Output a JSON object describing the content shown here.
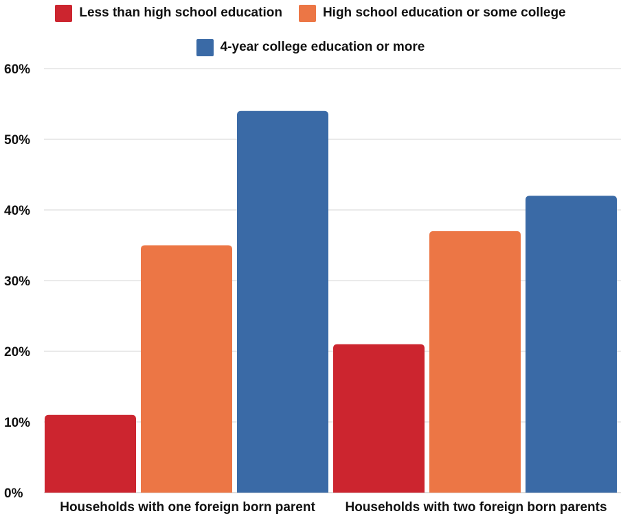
{
  "chart_data": {
    "type": "bar",
    "title": "",
    "xlabel": "",
    "ylabel": "",
    "categories": [
      "Households with one foreign born parent",
      "Households with two foreign born parents"
    ],
    "series": [
      {
        "name": "Less than high school education",
        "color": "#cc252f",
        "values": [
          11,
          21
        ]
      },
      {
        "name": "High school education or some college",
        "color": "#ec7645",
        "values": [
          35,
          37
        ]
      },
      {
        "name": "4-year college education or more",
        "color": "#3a6aa6",
        "values": [
          54,
          42
        ]
      }
    ],
    "ylim": [
      0,
      60
    ],
    "yticks": [
      0,
      10,
      20,
      30,
      40,
      50,
      60
    ],
    "ytick_labels": [
      "0%",
      "10%",
      "20%",
      "30%",
      "40%",
      "50%",
      "60%"
    ],
    "grid": true,
    "legend_position": "top"
  }
}
